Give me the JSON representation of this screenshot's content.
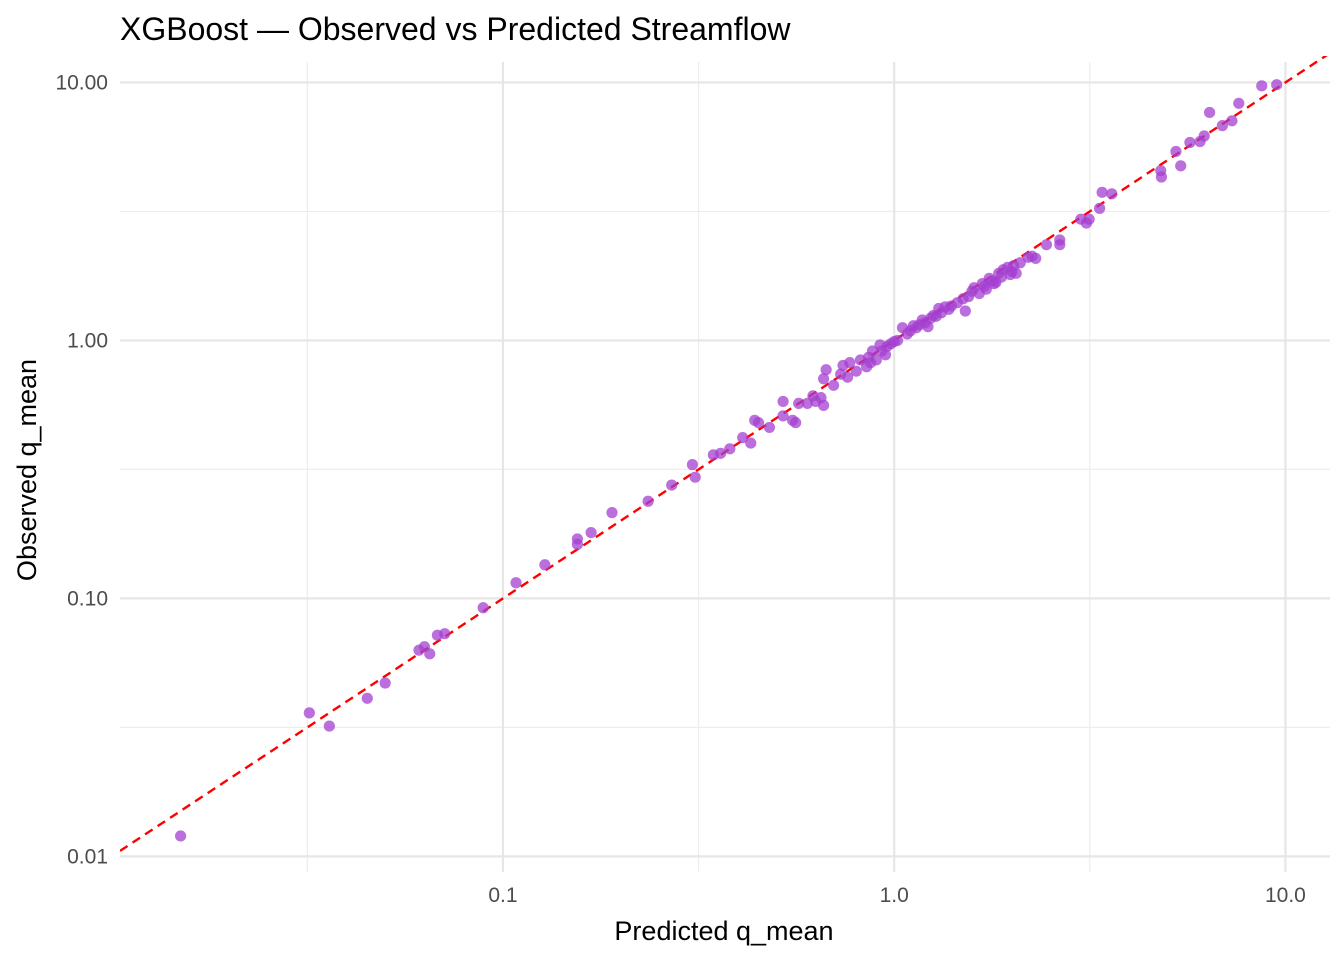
{
  "chart_data": {
    "type": "scatter",
    "title": "XGBoost — Observed vs Predicted Streamflow",
    "xlabel": "Predicted q_mean",
    "ylabel": "Observed q_mean",
    "x_scale": "log10",
    "y_scale": "log10",
    "xlim": [
      0.0105,
      13
    ],
    "ylim": [
      0.0087,
      12
    ],
    "x_ticks": [
      0.1,
      1.0,
      10.0
    ],
    "x_tick_labels": [
      "0.1",
      "1.0",
      "10.0"
    ],
    "y_ticks": [
      0.01,
      0.1,
      1.0,
      10.0
    ],
    "y_tick_labels": [
      "0.01",
      "0.10",
      "1.00",
      "10.00"
    ],
    "grid": true,
    "legend": "none",
    "point_color": "#a43fd0",
    "reference_line": {
      "type": "identity",
      "color": "#ff0000",
      "style": "dashed"
    },
    "series": [
      {
        "points": [
          [
            0.015,
            0.012
          ],
          [
            0.032,
            0.036
          ],
          [
            0.036,
            0.032
          ],
          [
            0.045,
            0.041
          ],
          [
            0.05,
            0.047
          ],
          [
            0.061,
            0.063
          ],
          [
            0.063,
            0.065
          ],
          [
            0.065,
            0.061
          ],
          [
            0.068,
            0.072
          ],
          [
            0.071,
            0.073
          ],
          [
            0.089,
            0.092
          ],
          [
            0.108,
            0.115
          ],
          [
            0.128,
            0.135
          ],
          [
            0.155,
            0.162
          ],
          [
            0.155,
            0.17
          ],
          [
            0.168,
            0.18
          ],
          [
            0.19,
            0.215
          ],
          [
            0.235,
            0.238
          ],
          [
            0.27,
            0.275
          ],
          [
            0.305,
            0.33
          ],
          [
            0.31,
            0.295
          ],
          [
            0.345,
            0.36
          ],
          [
            0.36,
            0.365
          ],
          [
            0.38,
            0.38
          ],
          [
            0.41,
            0.42
          ],
          [
            0.43,
            0.4
          ],
          [
            0.44,
            0.49
          ],
          [
            0.45,
            0.48
          ],
          [
            0.48,
            0.46
          ],
          [
            0.52,
            0.51
          ],
          [
            0.52,
            0.58
          ],
          [
            0.55,
            0.49
          ],
          [
            0.56,
            0.48
          ],
          [
            0.57,
            0.57
          ],
          [
            0.6,
            0.57
          ],
          [
            0.62,
            0.61
          ],
          [
            0.63,
            0.58
          ],
          [
            0.65,
            0.6
          ],
          [
            0.66,
            0.56
          ],
          [
            0.66,
            0.71
          ],
          [
            0.67,
            0.77
          ],
          [
            0.7,
            0.67
          ],
          [
            0.73,
            0.74
          ],
          [
            0.74,
            0.8
          ],
          [
            0.76,
            0.72
          ],
          [
            0.77,
            0.82
          ],
          [
            0.8,
            0.76
          ],
          [
            0.82,
            0.84
          ],
          [
            0.85,
            0.79
          ],
          [
            0.86,
            0.86
          ],
          [
            0.87,
            0.82
          ],
          [
            0.88,
            0.91
          ],
          [
            0.9,
            0.84
          ],
          [
            0.92,
            0.96
          ],
          [
            0.93,
            0.91
          ],
          [
            0.95,
            0.88
          ],
          [
            0.96,
            0.95
          ],
          [
            0.98,
            0.97
          ],
          [
            1.0,
            0.99
          ],
          [
            1.02,
            1.0
          ],
          [
            1.05,
            1.12
          ],
          [
            1.08,
            1.06
          ],
          [
            1.1,
            1.09
          ],
          [
            1.12,
            1.14
          ],
          [
            1.14,
            1.12
          ],
          [
            1.16,
            1.15
          ],
          [
            1.18,
            1.2
          ],
          [
            1.2,
            1.17
          ],
          [
            1.22,
            1.13
          ],
          [
            1.24,
            1.22
          ],
          [
            1.26,
            1.25
          ],
          [
            1.28,
            1.24
          ],
          [
            1.3,
            1.33
          ],
          [
            1.32,
            1.28
          ],
          [
            1.35,
            1.35
          ],
          [
            1.38,
            1.32
          ],
          [
            1.4,
            1.36
          ],
          [
            1.45,
            1.4
          ],
          [
            1.5,
            1.45
          ],
          [
            1.52,
            1.3
          ],
          [
            1.55,
            1.48
          ],
          [
            1.58,
            1.55
          ],
          [
            1.6,
            1.6
          ],
          [
            1.65,
            1.52
          ],
          [
            1.68,
            1.66
          ],
          [
            1.7,
            1.62
          ],
          [
            1.72,
            1.58
          ],
          [
            1.75,
            1.74
          ],
          [
            1.78,
            1.7
          ],
          [
            1.8,
            1.66
          ],
          [
            1.82,
            1.68
          ],
          [
            1.85,
            1.82
          ],
          [
            1.88,
            1.76
          ],
          [
            1.9,
            1.88
          ],
          [
            1.95,
            1.92
          ],
          [
            1.98,
            1.8
          ],
          [
            2.0,
            1.85
          ],
          [
            2.02,
            1.95
          ],
          [
            2.05,
            1.82
          ],
          [
            2.1,
            2.0
          ],
          [
            2.2,
            2.1
          ],
          [
            2.25,
            2.12
          ],
          [
            2.3,
            2.08
          ],
          [
            2.45,
            2.35
          ],
          [
            2.65,
            2.45
          ],
          [
            2.65,
            2.35
          ],
          [
            3.0,
            2.95
          ],
          [
            3.1,
            2.85
          ],
          [
            3.15,
            2.95
          ],
          [
            3.35,
            3.25
          ],
          [
            3.4,
            3.75
          ],
          [
            3.6,
            3.7
          ],
          [
            4.8,
            4.55
          ],
          [
            4.82,
            4.3
          ],
          [
            5.25,
            5.4
          ],
          [
            5.4,
            4.75
          ],
          [
            5.7,
            5.85
          ],
          [
            6.05,
            5.9
          ],
          [
            6.2,
            6.2
          ],
          [
            6.4,
            7.65
          ],
          [
            6.9,
            6.8
          ],
          [
            7.3,
            7.1
          ],
          [
            7.6,
            8.3
          ],
          [
            8.7,
            9.7
          ],
          [
            9.5,
            9.8
          ]
        ]
      }
    ]
  }
}
